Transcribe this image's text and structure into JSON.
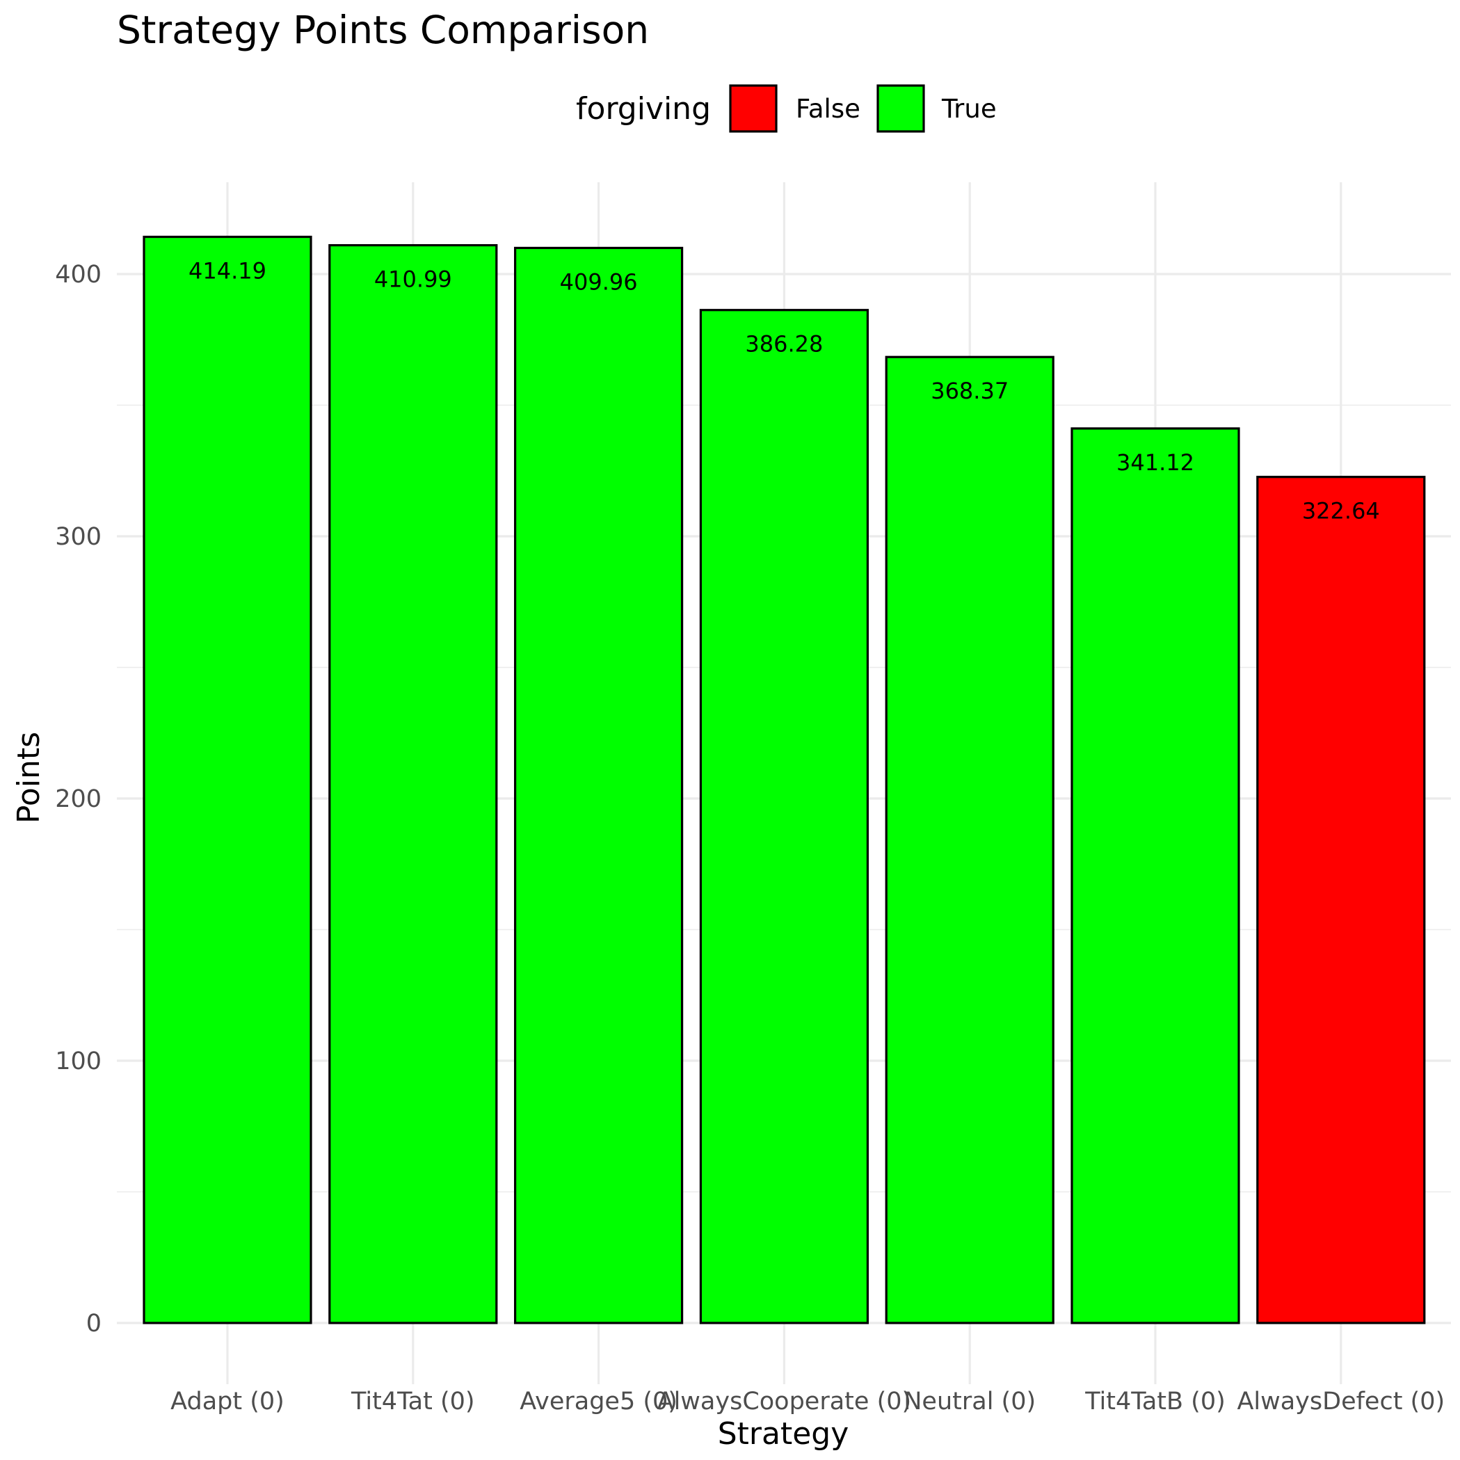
{
  "chart_data": {
    "type": "bar",
    "title": "Strategy Points Comparison",
    "xlabel": "Strategy",
    "ylabel": "Points",
    "ylim": [
      0,
      430
    ],
    "yticks": [
      0,
      100,
      200,
      300,
      400
    ],
    "grid": true,
    "legend": {
      "title": "forgiving",
      "placement": "top",
      "entries": [
        {
          "label": "False",
          "color": "#ff0000"
        },
        {
          "label": "True",
          "color": "#00ff00"
        }
      ]
    },
    "categories": [
      "Adapt (0)",
      "Tit4Tat (0)",
      "Average5 (0)",
      "AlwaysCooperate (0)",
      "Neutral (0)",
      "Tit4TatB (0)",
      "AlwaysDefect (0)"
    ],
    "values": [
      414.19,
      410.99,
      409.96,
      386.28,
      368.37,
      341.12,
      322.64
    ],
    "value_labels": [
      "414.19",
      "410.99",
      "409.96",
      "386.28",
      "368.37",
      "341.12",
      "322.64"
    ],
    "forgiving": [
      "True",
      "True",
      "True",
      "True",
      "True",
      "True",
      "False"
    ]
  }
}
